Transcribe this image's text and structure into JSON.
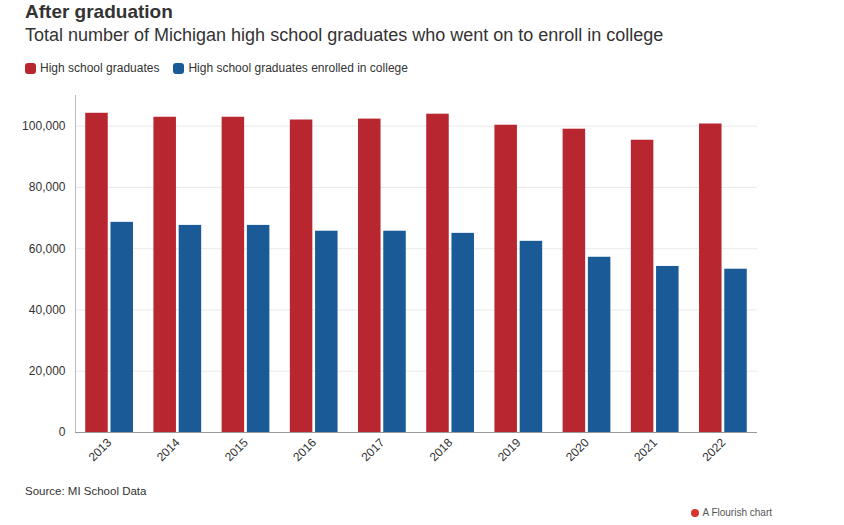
{
  "chart_data": {
    "type": "bar",
    "title": "After graduation",
    "subtitle": "Total number of Michigan high school graduates who went on to enroll in college",
    "categories": [
      "2013",
      "2014",
      "2015",
      "2016",
      "2017",
      "2018",
      "2019",
      "2020",
      "2021",
      "2022"
    ],
    "series": [
      {
        "name": "High school graduates",
        "color": "#b8272f",
        "values": [
          104200,
          102900,
          102900,
          102000,
          102300,
          103900,
          100300,
          99000,
          95400,
          100700
        ]
      },
      {
        "name": "High school graduates enrolled in college",
        "color": "#1a5a96",
        "values": [
          68600,
          67600,
          67600,
          65700,
          65700,
          65000,
          62400,
          57200,
          54200,
          53300
        ]
      }
    ],
    "ylim": [
      0,
      110000
    ],
    "yticks": [
      0,
      {
        "value": 20000,
        "label": "20,000"
      },
      {
        "value": 40000,
        "label": "40,000"
      },
      {
        "value": 60000,
        "label": "60,000"
      },
      {
        "value": 80000,
        "label": "80,000"
      },
      {
        "value": 100000,
        "label": "100,000"
      }
    ],
    "grid": true,
    "legend": "top-left",
    "source": "Source: MI School Data",
    "credit": "A Flourish chart"
  }
}
